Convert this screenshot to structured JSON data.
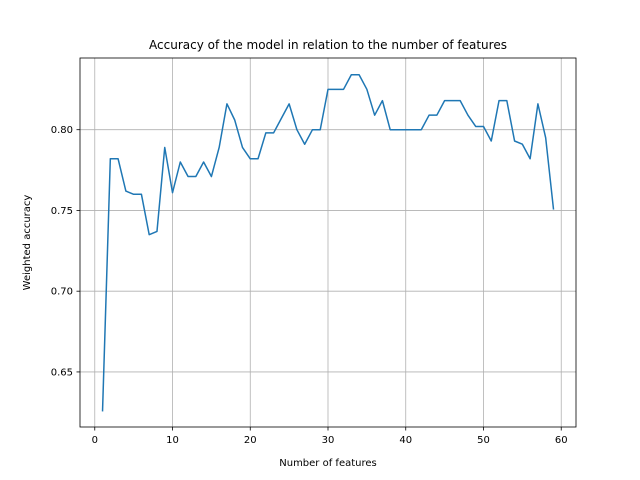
{
  "chart_data": {
    "type": "line",
    "title": "Accuracy of the model in relation to the number of features",
    "xlabel": "Number of features",
    "ylabel": "Weighted accuracy",
    "xlim": [
      -1.9,
      61.9
    ],
    "ylim": [
      0.6159,
      0.8444
    ],
    "xticks": [
      0,
      10,
      20,
      30,
      40,
      50,
      60
    ],
    "xtick_labels": [
      "0",
      "10",
      "20",
      "30",
      "40",
      "50",
      "60"
    ],
    "yticks": [
      0.65,
      0.7,
      0.75,
      0.8
    ],
    "ytick_labels": [
      "0.65",
      "0.70",
      "0.75",
      "0.80"
    ],
    "grid": true,
    "colors": {
      "line": "#1f77b4"
    },
    "series": [
      {
        "x": [
          1,
          2,
          3,
          4,
          5,
          6,
          7,
          8,
          9,
          10,
          11,
          12,
          13,
          14,
          15,
          16,
          17,
          18,
          19,
          20,
          21,
          22,
          23,
          24,
          25,
          26,
          27,
          28,
          29,
          30,
          31,
          32,
          33,
          34,
          35,
          36,
          37,
          38,
          39,
          40,
          41,
          42,
          43,
          44,
          45,
          46,
          47,
          48,
          49,
          50,
          51,
          52,
          53,
          54,
          55,
          56,
          57,
          58,
          59
        ],
        "values": [
          0.626,
          0.782,
          0.782,
          0.762,
          0.76,
          0.76,
          0.735,
          0.737,
          0.789,
          0.761,
          0.78,
          0.771,
          0.771,
          0.78,
          0.771,
          0.789,
          0.816,
          0.806,
          0.789,
          0.782,
          0.782,
          0.798,
          0.798,
          0.807,
          0.816,
          0.8,
          0.791,
          0.8,
          0.8,
          0.825,
          0.825,
          0.825,
          0.834,
          0.834,
          0.825,
          0.809,
          0.818,
          0.8,
          0.8,
          0.8,
          0.8,
          0.8,
          0.809,
          0.809,
          0.818,
          0.818,
          0.818,
          0.809,
          0.802,
          0.802,
          0.793,
          0.818,
          0.818,
          0.793,
          0.791,
          0.782,
          0.816,
          0.795,
          0.751
        ]
      }
    ]
  }
}
